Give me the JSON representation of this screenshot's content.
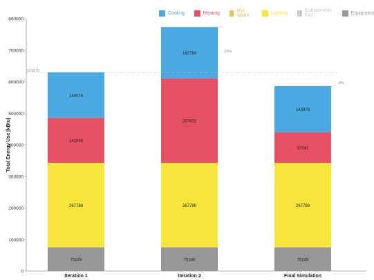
{
  "chart_data": {
    "type": "bar",
    "stacked": true,
    "categories": [
      "Iteration 1",
      "Iteration 2",
      "Final Simulation"
    ],
    "series": [
      {
        "name": "Equipment",
        "color": "#979797",
        "values": [
          75249,
          75249,
          75249
        ]
      },
      {
        "name": "Equipement Fan",
        "color": "#c8c8c8",
        "values": [
          0,
          0,
          0
        ]
      },
      {
        "name": "Lighting",
        "color": "#f7e53b",
        "values": [
          267789,
          267789,
          267789
        ]
      },
      {
        "name": "Hot Water",
        "color": "#f4bd5a",
        "values": [
          0,
          0,
          0
        ]
      },
      {
        "name": "Heating",
        "color": "#e65264",
        "values": [
          142699,
          267602,
          97041
        ]
      },
      {
        "name": "Cooling",
        "color": "#4aa9e0",
        "values": [
          144074,
          162789,
          145978
        ]
      }
    ],
    "segment_labels": [
      [
        "75249",
        "267789",
        "142699",
        "144074"
      ],
      [
        "75249",
        "267789",
        "267602",
        "162789"
      ],
      [
        "75249",
        "267789",
        "97041",
        "145978"
      ]
    ],
    "legend_order": [
      "Cooling",
      "Heating",
      "Hot Water",
      "Lighting",
      "Equipement Fan",
      "Equipment"
    ],
    "legend_position": "top-right",
    "ylabel": "Total Energy Use [kBtu]",
    "xlabel": "",
    "ylim": [
      0,
      800000
    ],
    "yticks": [
      0,
      100000,
      200000,
      300000,
      400000,
      500000,
      600000,
      700000,
      800000
    ],
    "baseline": {
      "value": 629870,
      "label": "629870"
    },
    "annotations": [
      {
        "category": "Iteration 2",
        "text": "23%"
      },
      {
        "category": "Final Simulation",
        "text": "-8%"
      }
    ],
    "grid": false
  }
}
